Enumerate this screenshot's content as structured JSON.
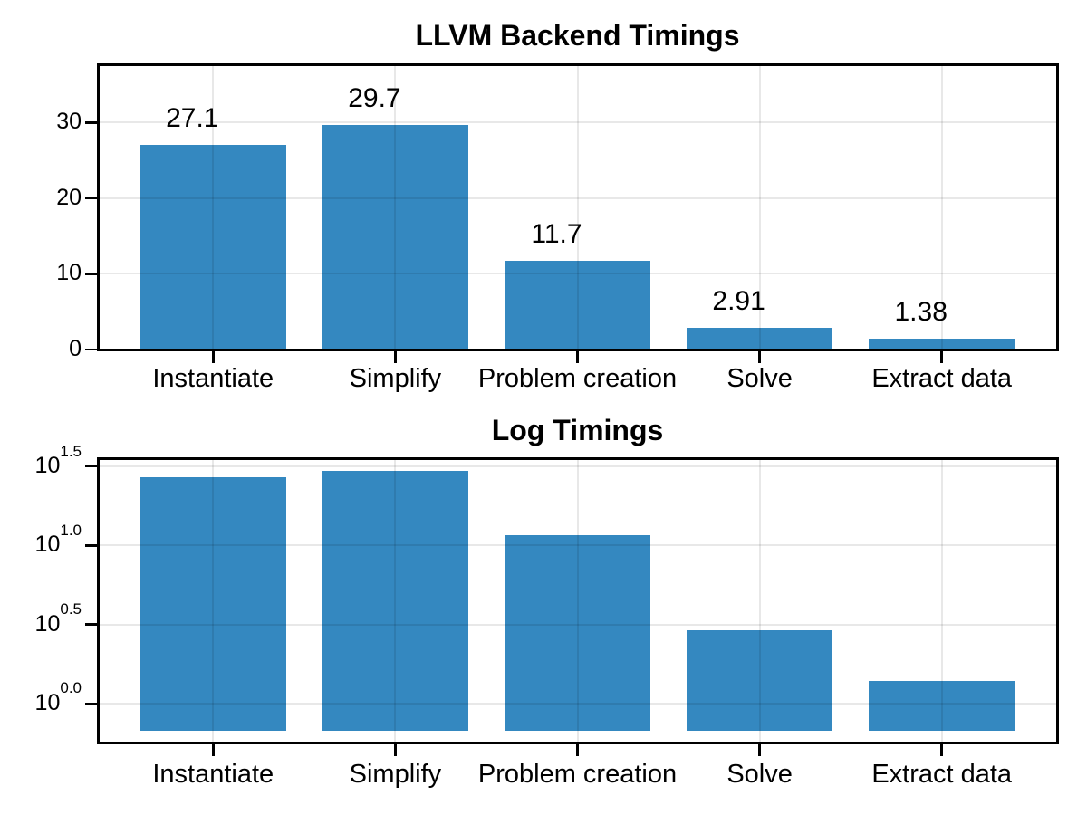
{
  "figure": {
    "background": "#ffffff"
  },
  "style": {
    "bar_color": "#3488C0",
    "grid_color": "rgba(0,0,0,0.09)",
    "spine_color": "#000000",
    "text_color": "#000000"
  },
  "chart_data": [
    {
      "type": "bar",
      "title": "LLVM Backend Timings",
      "categories": [
        "Instantiate",
        "Simplify",
        "Problem creation",
        "Solve",
        "Extract data"
      ],
      "values": [
        27.1,
        29.7,
        11.7,
        2.91,
        1.38
      ],
      "bar_value_labels": [
        "27.1",
        "29.7",
        "11.7",
        "2.91",
        "1.38"
      ],
      "yscale": "linear",
      "ylim": [
        0,
        37.7
      ],
      "yticks": [
        {
          "value": 0,
          "label": "0",
          "gridline": false
        },
        {
          "value": 10,
          "label": "10",
          "gridline": true
        },
        {
          "value": 20,
          "label": "20",
          "gridline": true
        },
        {
          "value": 30,
          "label": "30",
          "gridline": true
        }
      ],
      "grid": true,
      "legend": null,
      "bar_color": "#3488C0"
    },
    {
      "type": "bar",
      "title": "Log Timings",
      "categories": [
        "Instantiate",
        "Simplify",
        "Problem creation",
        "Solve",
        "Extract data"
      ],
      "values": [
        27.1,
        29.7,
        11.7,
        2.91,
        1.38
      ],
      "bar_value_labels": null,
      "yscale": "log10",
      "ylim_exponents": [
        -0.25,
        1.553
      ],
      "bar_base_exponent": -0.17,
      "yticks": [
        {
          "exponent": 1.5,
          "label_base": "10",
          "label_exponent": "1.5",
          "gridline": true
        },
        {
          "exponent": 1.0,
          "label_base": "10",
          "label_exponent": "1.0",
          "gridline": true
        },
        {
          "exponent": 0.5,
          "label_base": "10",
          "label_exponent": "0.5",
          "gridline": true
        },
        {
          "exponent": 0.0,
          "label_base": "10",
          "label_exponent": "0.0",
          "gridline": true
        }
      ],
      "grid": true,
      "legend": null,
      "bar_color": "#3488C0"
    }
  ]
}
